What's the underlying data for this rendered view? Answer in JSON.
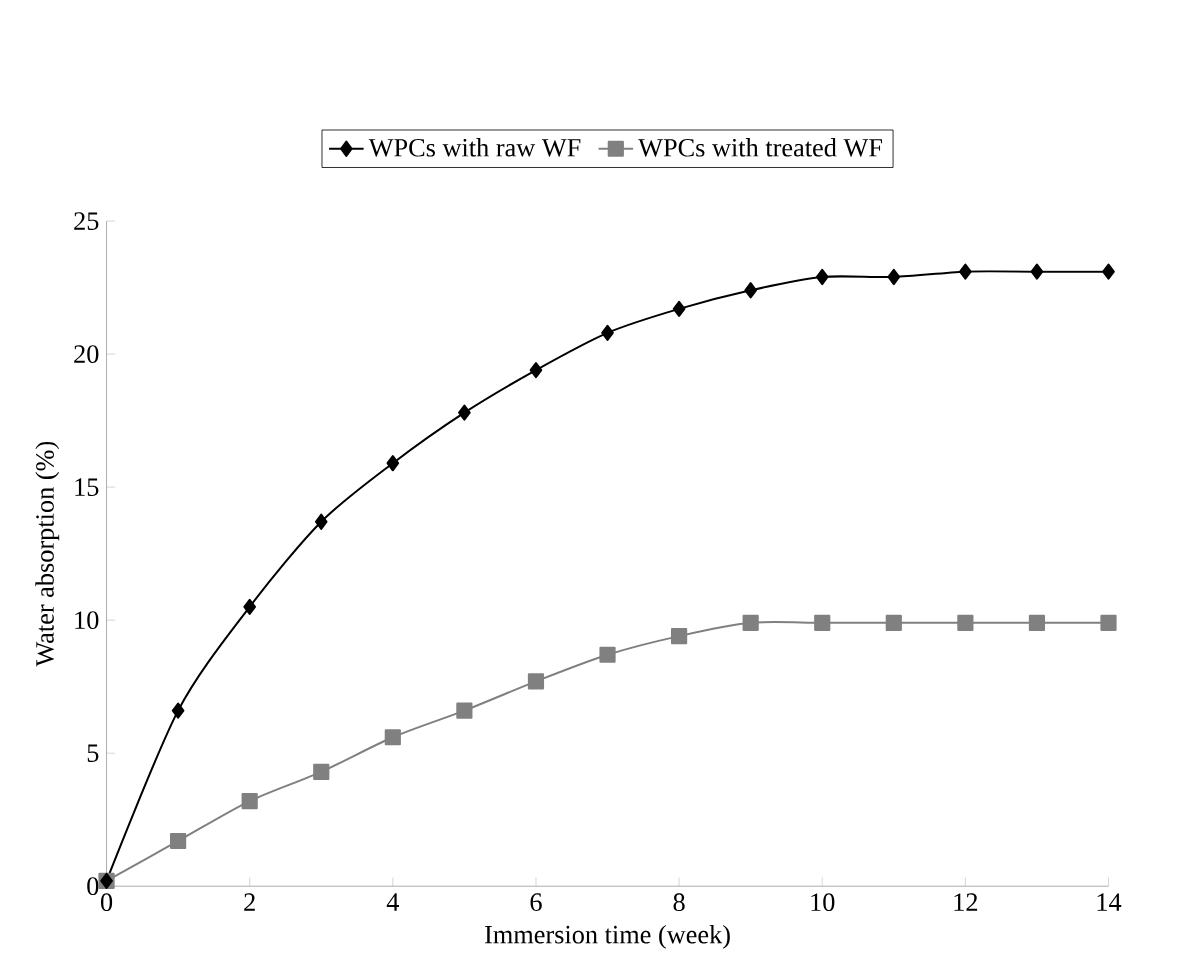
{
  "chart_data": {
    "type": "line",
    "xlabel": "Immersion time (week)",
    "ylabel": "Water absorption (%)",
    "x": [
      0,
      1,
      2,
      3,
      4,
      5,
      6,
      7,
      8,
      9,
      10,
      11,
      12,
      13,
      14
    ],
    "series": [
      {
        "name": "WPCs with raw WF",
        "color": "#000000",
        "marker": "diamond",
        "values": [
          0.2,
          6.6,
          10.5,
          13.7,
          15.9,
          17.8,
          19.4,
          20.8,
          21.7,
          22.4,
          22.9,
          22.9,
          23.1,
          23.1,
          23.1
        ]
      },
      {
        "name": "WPCs with treated WF",
        "color": "#808080",
        "marker": "square",
        "values": [
          0.2,
          1.7,
          3.2,
          4.3,
          5.6,
          6.6,
          7.7,
          8.7,
          9.4,
          9.9,
          9.9,
          9.9,
          9.9,
          9.9,
          9.9
        ]
      }
    ],
    "xlim": [
      0,
      14
    ],
    "xticks": [
      0,
      2,
      4,
      6,
      8,
      10,
      12,
      14
    ],
    "ylim": [
      0,
      25
    ],
    "yticks": [
      0,
      5,
      10,
      15,
      20,
      25
    ],
    "grid": false,
    "legend": "top",
    "line_style": "solid"
  }
}
